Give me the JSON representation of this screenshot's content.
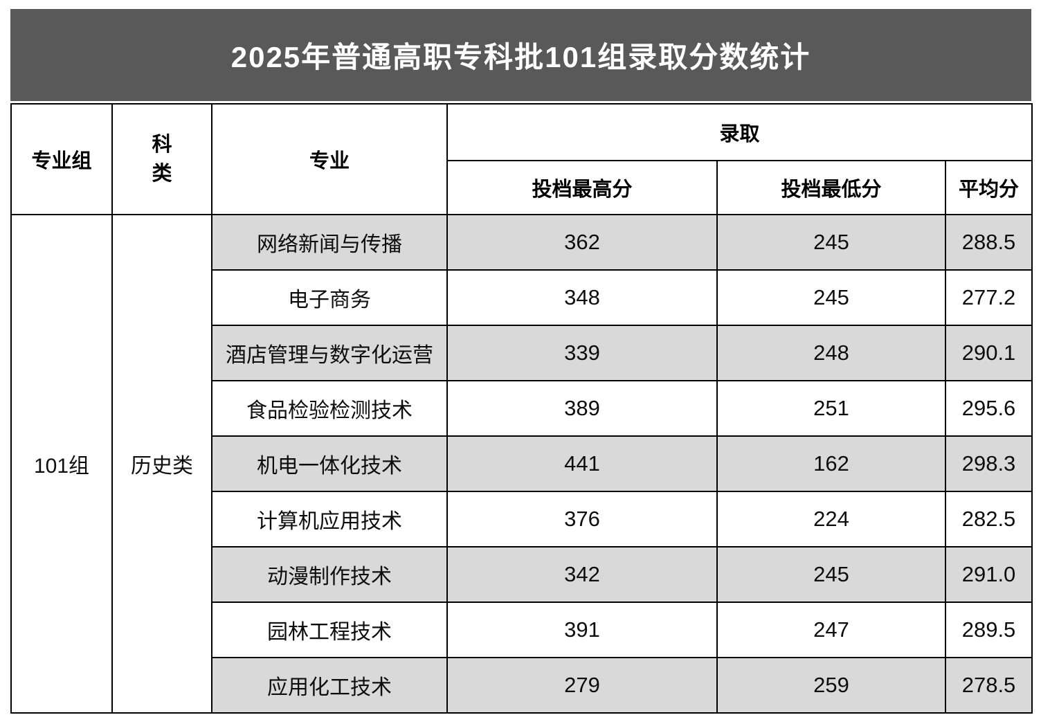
{
  "title": "2025年普通高职专科批101组录取分数统计",
  "colors": {
    "title_bg": "#595959",
    "title_text": "#ffffff",
    "stripe_bg": "#d9d9d9",
    "border": "#000000"
  },
  "table": {
    "headers": {
      "group": "专业组",
      "category": "科\n类",
      "major": "专业",
      "admission": "录取",
      "max_score": "投档最高分",
      "min_score": "投档最低分",
      "avg_score": "平均分"
    },
    "group_value": "101组",
    "category_value": "历史类",
    "rows": [
      {
        "major": "网络新闻与传播",
        "max": "362",
        "min": "245",
        "avg": "288.5"
      },
      {
        "major": "电子商务",
        "max": "348",
        "min": "245",
        "avg": "277.2"
      },
      {
        "major": "酒店管理与数字化运营",
        "max": "339",
        "min": "248",
        "avg": "290.1"
      },
      {
        "major": "食品检验检测技术",
        "max": "389",
        "min": "251",
        "avg": "295.6"
      },
      {
        "major": "机电一体化技术",
        "max": "441",
        "min": "162",
        "avg": "298.3"
      },
      {
        "major": "计算机应用技术",
        "max": "376",
        "min": "224",
        "avg": "282.5"
      },
      {
        "major": "动漫制作技术",
        "max": "342",
        "min": "245",
        "avg": "291.0"
      },
      {
        "major": "园林工程技术",
        "max": "391",
        "min": "247",
        "avg": "289.5"
      },
      {
        "major": "应用化工技术",
        "max": "279",
        "min": "259",
        "avg": "278.5"
      }
    ]
  }
}
